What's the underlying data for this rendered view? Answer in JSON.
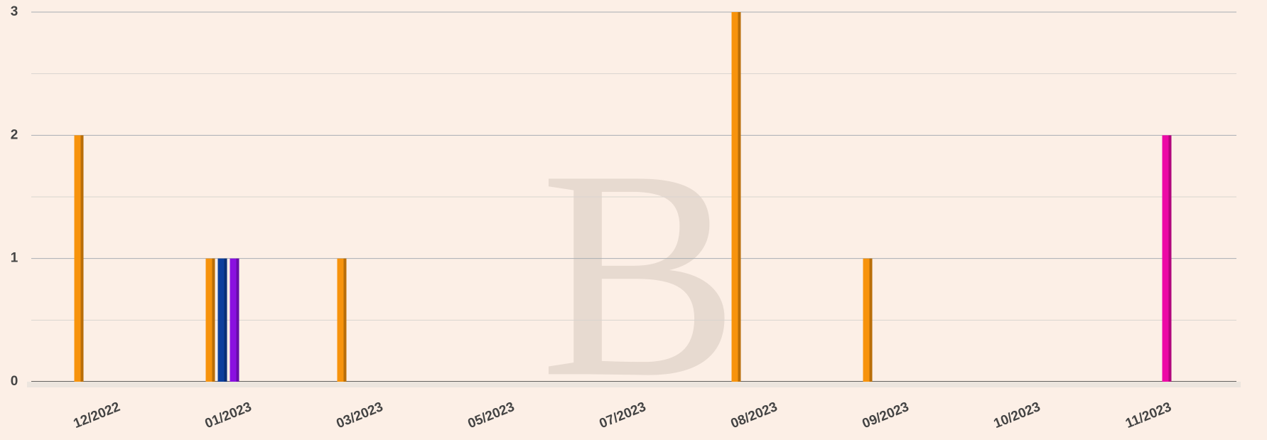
{
  "chart_data": {
    "type": "bar",
    "categories": [
      "12/2022",
      "01/2023",
      "03/2023",
      "05/2023",
      "07/2023",
      "08/2023",
      "09/2023",
      "10/2023",
      "11/2023"
    ],
    "series": [
      {
        "color": "#f7930c",
        "values": [
          2,
          1,
          1,
          0,
          0,
          3,
          1,
          0,
          0
        ]
      },
      {
        "color": "#0d3f9c",
        "values": [
          0,
          1,
          0,
          0,
          0,
          0,
          0,
          0,
          0
        ]
      },
      {
        "color": "#8a10e0",
        "values": [
          0,
          1,
          0,
          0,
          0,
          0,
          0,
          0,
          0
        ]
      },
      {
        "color": "#ec0aa6",
        "values": [
          0,
          0,
          0,
          0,
          0,
          0,
          0,
          0,
          2
        ]
      }
    ],
    "ylim": [
      0,
      3
    ],
    "yticks": [
      0,
      1,
      2,
      3
    ],
    "grid": true
  }
}
